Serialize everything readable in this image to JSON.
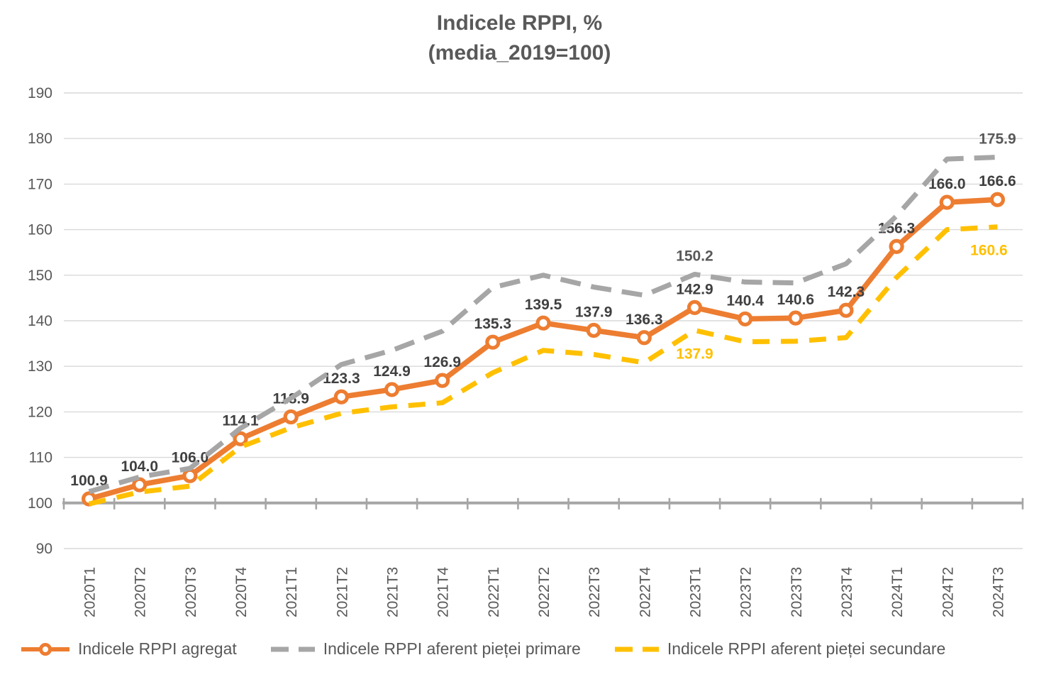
{
  "title": {
    "line1": "Indicele RPPI, %",
    "line2": "(media_2019=100)"
  },
  "colors": {
    "aggregate": "#ED7D31",
    "primary": "#A6A6A6",
    "secondary": "#FFC000",
    "gridline": "#D9D9D9",
    "axis_line": "#A6A6A6",
    "axis_text": "#595959",
    "value_label_text": "#404040"
  },
  "chart_data": {
    "type": "line",
    "title": "Indicele RPPI, % (media_2019=100)",
    "categories": [
      "2020T1",
      "2020T2",
      "2020T3",
      "2020T4",
      "2021T1",
      "2021T2",
      "2021T3",
      "2021T4",
      "2022T1",
      "2022T2",
      "2022T3",
      "2022T4",
      "2023T1",
      "2023T2",
      "2023T3",
      "2023T4",
      "2024T1",
      "2024T2",
      "2024T3"
    ],
    "ylim": [
      90,
      190
    ],
    "ytick_step": 10,
    "yticks": [
      190,
      180,
      170,
      160,
      150,
      140,
      130,
      120,
      110,
      100,
      90
    ],
    "grid": true,
    "legend_position": "bottom",
    "baseline_value": 100,
    "series": [
      {
        "name": "Indicele RPPI agregat",
        "color": "#ED7D31",
        "style": "solid",
        "marker": "circle",
        "values": [
          100.9,
          104.0,
          106.0,
          114.1,
          118.9,
          123.3,
          124.9,
          126.9,
          135.3,
          139.5,
          137.9,
          136.3,
          142.9,
          140.4,
          140.6,
          142.3,
          156.3,
          166.0,
          166.6
        ],
        "value_labels": [
          "100.9",
          "104.0",
          "106.0",
          "114.1",
          "118.9",
          "123.3",
          "124.9",
          "126.9",
          "135.3",
          "139.5",
          "137.9",
          "136.3",
          "142.9",
          "140.4",
          "140.6",
          "142.3",
          "156.3",
          "166.0",
          "166.6"
        ],
        "label_color": "#404040"
      },
      {
        "name": "Indicele RPPI aferent pieței primare",
        "color": "#A6A6A6",
        "style": "dashed",
        "marker": "none",
        "values": [
          102.5,
          105.7,
          107.6,
          116.4,
          123.0,
          130.4,
          133.5,
          137.7,
          147.3,
          150.0,
          147.4,
          145.6,
          150.2,
          148.5,
          148.3,
          152.5,
          163.0,
          175.5,
          175.9
        ],
        "value_labels": [
          "",
          "",
          "",
          "",
          "",
          "",
          "",
          "",
          "",
          "",
          "",
          "",
          "150.2",
          "",
          "",
          "",
          "",
          "",
          "175.9"
        ],
        "label_color": "#595959"
      },
      {
        "name": "Indicele RPPI aferent pieței secundare",
        "color": "#FFC000",
        "style": "dashed",
        "marker": "none",
        "values": [
          99.8,
          102.4,
          103.7,
          112.3,
          116.5,
          119.7,
          121.1,
          122.0,
          128.6,
          133.5,
          132.6,
          130.8,
          137.9,
          135.4,
          135.5,
          136.3,
          149.5,
          160.0,
          160.6
        ],
        "value_labels": [
          "",
          "",
          "",
          "",
          "",
          "",
          "",
          "",
          "",
          "",
          "",
          "",
          "137.9",
          "",
          "",
          "",
          "",
          "",
          "160.6"
        ],
        "label_color": "#FFC000"
      }
    ]
  }
}
